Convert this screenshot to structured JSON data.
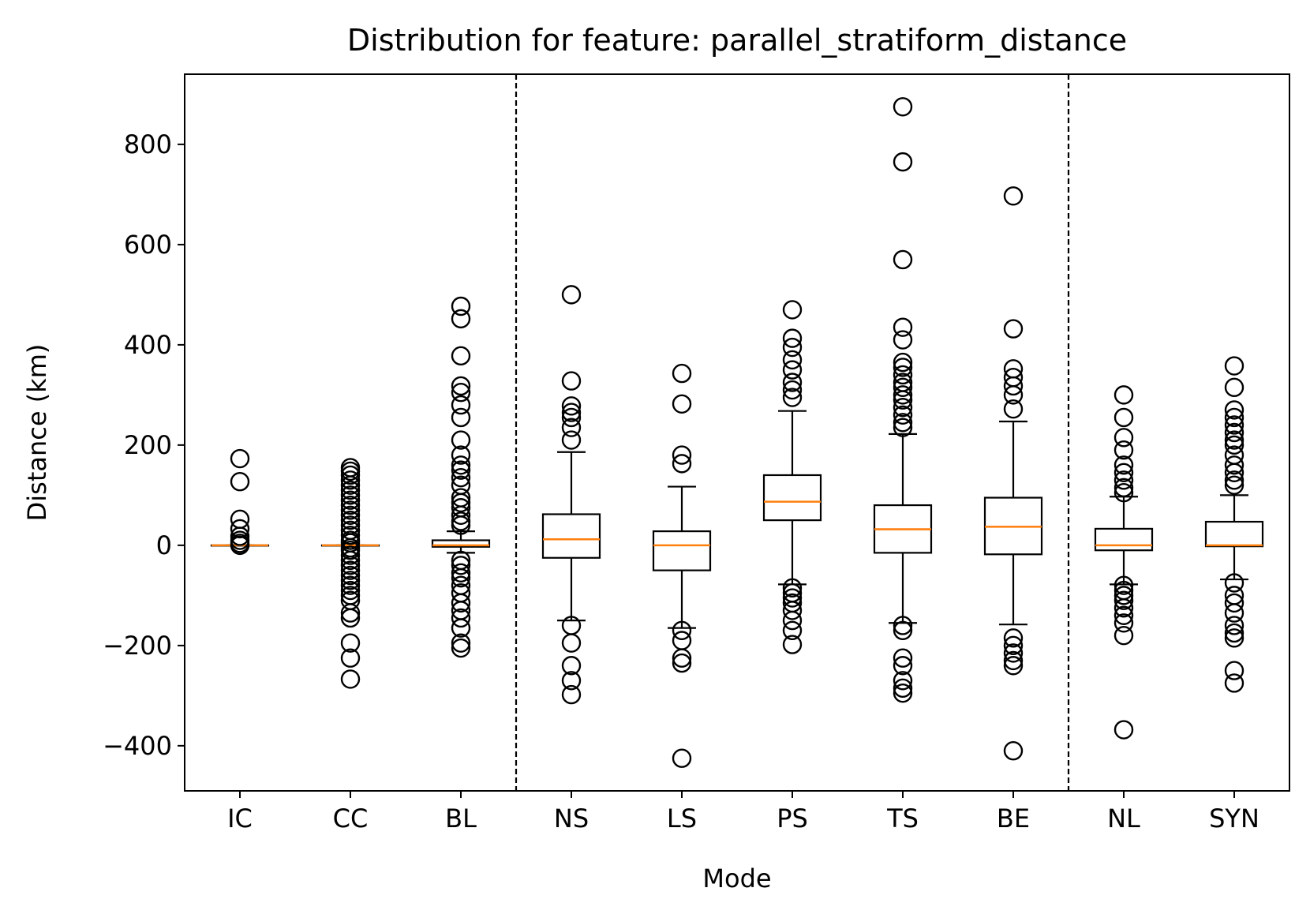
{
  "chart_data": {
    "type": "box",
    "title": "Distribution for feature: parallel_stratiform_distance",
    "xlabel": "Mode",
    "ylabel": "Distance (km)",
    "ylim": [
      -490,
      940
    ],
    "yticks": [
      -400,
      -200,
      0,
      200,
      400,
      600,
      800
    ],
    "ytick_labels": [
      "−400",
      "−200",
      "0",
      "200",
      "400",
      "600",
      "800"
    ],
    "categories": [
      "IC",
      "CC",
      "BL",
      "NS",
      "LS",
      "PS",
      "TS",
      "BE",
      "NL",
      "SYN"
    ],
    "group_separators_after": [
      2,
      7
    ],
    "grid": false,
    "legend": "none",
    "colors": {
      "box": "#000000",
      "median": "#ff7f0e",
      "separator": "#000000"
    },
    "boxes": [
      {
        "name": "IC",
        "q1": 0,
        "median": 0,
        "q3": 0,
        "whisker_low": 0,
        "whisker_high": 0,
        "outliers": [
          173,
          127,
          52,
          33,
          18,
          10,
          4,
          0
        ]
      },
      {
        "name": "CC",
        "q1": 0,
        "median": 0,
        "q3": 0,
        "whisker_low": 0,
        "whisker_high": 0,
        "outliers": [
          155,
          148,
          140,
          130,
          120,
          110,
          100,
          90,
          80,
          70,
          60,
          50,
          40,
          30,
          20,
          10,
          5,
          -5,
          -10,
          -20,
          -30,
          -40,
          -50,
          -60,
          -70,
          -80,
          -90,
          -100,
          -110,
          -135,
          -145,
          -195,
          -225,
          -267
        ]
      },
      {
        "name": "BL",
        "q1": -3,
        "median": 0,
        "q3": 10,
        "whisker_low": -15,
        "whisker_high": 28,
        "outliers": [
          477,
          452,
          378,
          318,
          305,
          280,
          255,
          210,
          180,
          160,
          150,
          135,
          120,
          95,
          85,
          75,
          60,
          48,
          40,
          -30,
          -40,
          -55,
          -65,
          -80,
          -95,
          -115,
          -130,
          -145,
          -165,
          -195,
          -205
        ]
      },
      {
        "name": "NS",
        "q1": -25,
        "median": 12,
        "q3": 62,
        "whisker_low": -150,
        "whisker_high": 186,
        "outliers": [
          500,
          328,
          278,
          265,
          255,
          235,
          210,
          -160,
          -195,
          -240,
          -270,
          -298
        ]
      },
      {
        "name": "LS",
        "q1": -50,
        "median": 0,
        "q3": 28,
        "whisker_low": -165,
        "whisker_high": 117,
        "outliers": [
          343,
          282,
          180,
          163,
          -170,
          -190,
          -225,
          -235,
          -425
        ]
      },
      {
        "name": "PS",
        "q1": 50,
        "median": 87,
        "q3": 140,
        "whisker_low": -78,
        "whisker_high": 268,
        "outliers": [
          470,
          413,
          395,
          370,
          350,
          325,
          310,
          295,
          -85,
          -95,
          -105,
          -115,
          -130,
          -150,
          -170,
          -198
        ]
      },
      {
        "name": "TS",
        "q1": -15,
        "median": 32,
        "q3": 80,
        "whisker_low": -155,
        "whisker_high": 222,
        "outliers": [
          875,
          765,
          570,
          435,
          410,
          365,
          355,
          340,
          325,
          315,
          300,
          290,
          275,
          260,
          245,
          235,
          -160,
          -170,
          -225,
          -240,
          -270,
          -285,
          -295
        ]
      },
      {
        "name": "BE",
        "q1": -18,
        "median": 37,
        "q3": 95,
        "whisker_low": -158,
        "whisker_high": 247,
        "outliers": [
          697,
          432,
          352,
          335,
          318,
          300,
          272,
          -185,
          -200,
          -215,
          -230,
          -240,
          -410
        ]
      },
      {
        "name": "NL",
        "q1": -10,
        "median": 0,
        "q3": 33,
        "whisker_low": -78,
        "whisker_high": 97,
        "outliers": [
          300,
          255,
          215,
          190,
          160,
          145,
          130,
          115,
          105,
          -80,
          -90,
          -100,
          -110,
          -125,
          -140,
          -155,
          -180,
          -368
        ]
      },
      {
        "name": "SYN",
        "q1": -2,
        "median": 0,
        "q3": 47,
        "whisker_low": -68,
        "whisker_high": 100,
        "outliers": [
          358,
          315,
          270,
          255,
          240,
          225,
          210,
          200,
          180,
          160,
          145,
          130,
          120,
          -75,
          -100,
          -115,
          -135,
          -160,
          -175,
          -185,
          -250,
          -275
        ]
      }
    ]
  }
}
